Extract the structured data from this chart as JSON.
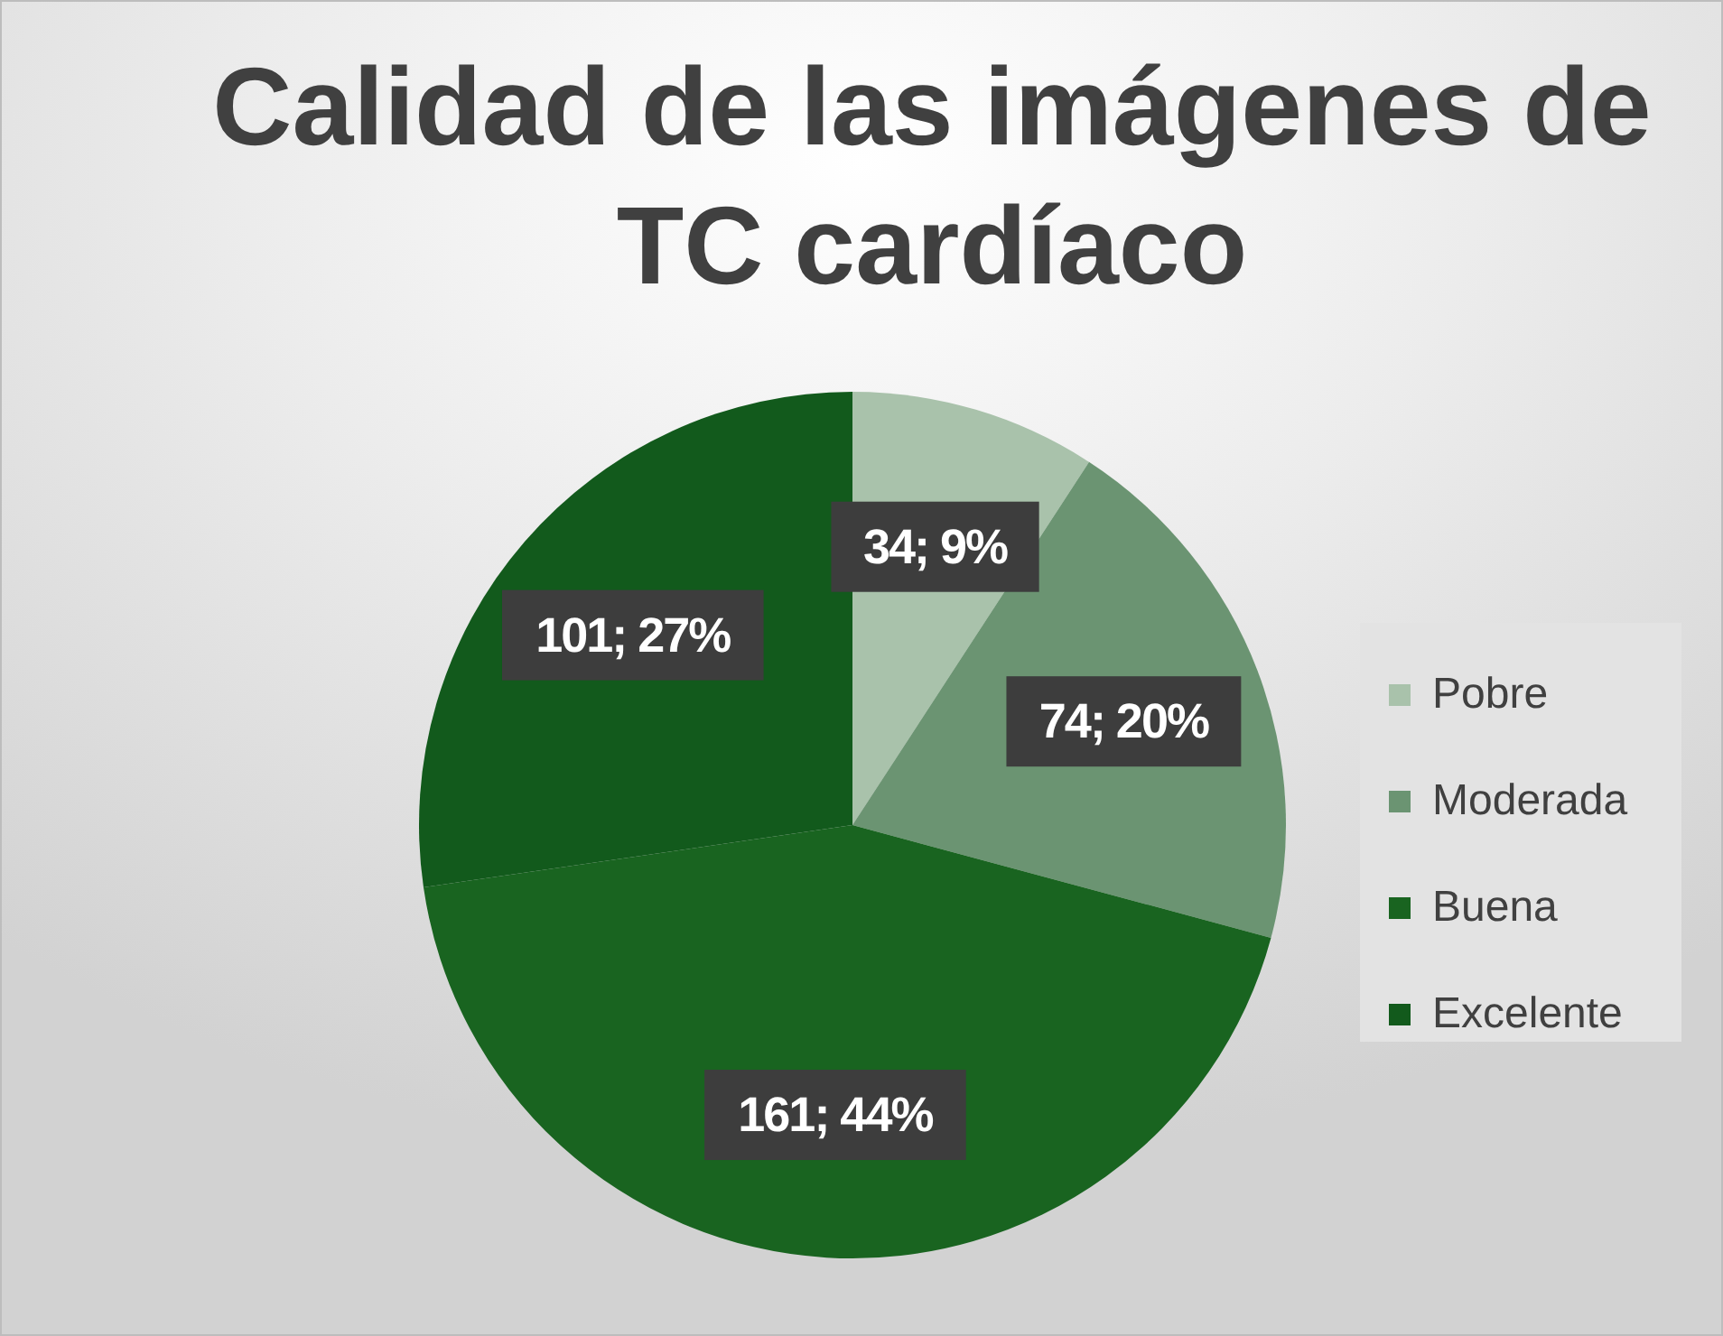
{
  "chart_data": {
    "type": "pie",
    "title": "Calidad de las imágenes de TC cardíaco",
    "categories": [
      "Pobre",
      "Moderada",
      "Buena",
      "Excelente"
    ],
    "values": [
      34,
      74,
      161,
      101
    ],
    "colors": [
      "#a9c2ab",
      "#6b9472",
      "#196420",
      "#125a1c"
    ],
    "value_labels": [
      "34; 9%",
      "74; 20%",
      "161; 44%",
      "101; 27%"
    ],
    "legend": "right"
  }
}
